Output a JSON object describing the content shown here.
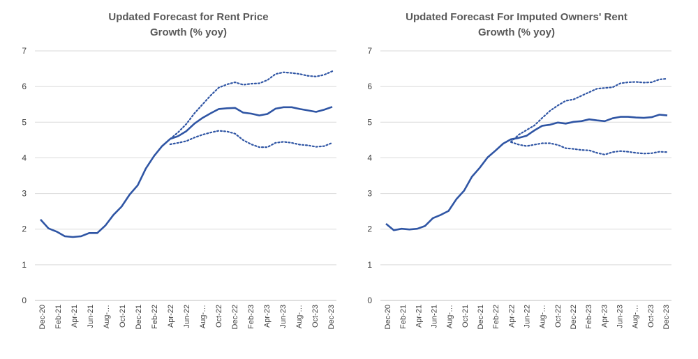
{
  "chart_data": [
    {
      "type": "line",
      "title_line1": "Updated Forecast for Rent Price",
      "title_line2": "Growth (% yoy)",
      "ylim": [
        0,
        7
      ],
      "yticks": [
        "0",
        "1",
        "2",
        "3",
        "4",
        "5",
        "6",
        "7"
      ],
      "tick_labels": [
        "Dec-20",
        "Feb-21",
        "Apr-21",
        "Jun-21",
        "Aug-…",
        "Oct-21",
        "Dec-21",
        "Feb-22",
        "Apr-22",
        "Jun-22",
        "Aug-…",
        "Oct-22",
        "Dec-22",
        "Feb-23",
        "Apr-23",
        "Jun-23",
        "Aug-…",
        "Oct-23",
        "Dec-23"
      ],
      "grid": true,
      "colors": {
        "line": "#2f55a4",
        "grid": "#d9d9d9",
        "axis": "#bfbfbf"
      },
      "series": [
        {
          "name": "forecast",
          "style": "solid",
          "start": 0,
          "values": [
            2.27,
            2.02,
            1.93,
            1.8,
            1.78,
            1.8,
            1.89,
            1.89,
            2.1,
            2.4,
            2.63,
            2.97,
            3.23,
            3.7,
            4.05,
            4.33,
            4.53,
            4.61,
            4.75,
            4.96,
            5.12,
            5.25,
            5.37,
            5.39,
            5.4,
            5.27,
            5.24,
            5.19,
            5.23,
            5.38,
            5.42,
            5.42,
            5.37,
            5.33,
            5.29,
            5.35,
            5.43
          ]
        },
        {
          "name": "upper bound",
          "style": "dotted",
          "start": 16,
          "values": [
            4.53,
            4.72,
            4.95,
            5.25,
            5.5,
            5.75,
            5.97,
            6.06,
            6.12,
            6.05,
            6.08,
            6.09,
            6.18,
            6.35,
            6.4,
            6.38,
            6.35,
            6.3,
            6.28,
            6.33,
            6.43
          ]
        },
        {
          "name": "lower bound",
          "style": "dotted",
          "start": 16,
          "values": [
            4.38,
            4.42,
            4.47,
            4.57,
            4.65,
            4.71,
            4.76,
            4.74,
            4.68,
            4.5,
            4.38,
            4.3,
            4.3,
            4.42,
            4.45,
            4.42,
            4.37,
            4.35,
            4.31,
            4.33,
            4.42
          ]
        }
      ]
    },
    {
      "type": "line",
      "title_line1": "Updated Forecast For Imputed Owners' Rent",
      "title_line2": "Growth (% yoy)",
      "ylim": [
        0,
        7
      ],
      "yticks": [
        "0",
        "1",
        "2",
        "3",
        "4",
        "5",
        "6",
        "7"
      ],
      "tick_labels": [
        "Dec-20",
        "Feb-21",
        "Apr-21",
        "Jun-21",
        "Aug-…",
        "Oct-21",
        "Dec-21",
        "Feb-22",
        "Apr-22",
        "Jun-22",
        "Aug-…",
        "Oct-22",
        "Dec-22",
        "Feb-23",
        "Apr-23",
        "Jun-23",
        "Aug-…",
        "Oct-23",
        "Dec-23"
      ],
      "grid": true,
      "colors": {
        "line": "#2f55a4",
        "grid": "#d9d9d9",
        "axis": "#bfbfbf"
      },
      "series": [
        {
          "name": "forecast",
          "style": "solid",
          "start": 0,
          "values": [
            2.15,
            1.97,
            2.01,
            1.99,
            2.01,
            2.09,
            2.31,
            2.4,
            2.51,
            2.84,
            3.08,
            3.47,
            3.72,
            4.01,
            4.2,
            4.4,
            4.52,
            4.56,
            4.62,
            4.77,
            4.9,
            4.93,
            4.99,
            4.96,
            5.01,
            5.03,
            5.08,
            5.05,
            5.03,
            5.11,
            5.15,
            5.15,
            5.13,
            5.12,
            5.14,
            5.21,
            5.19
          ]
        },
        {
          "name": "upper bound",
          "style": "dotted",
          "start": 16,
          "values": [
            4.45,
            4.65,
            4.78,
            4.91,
            5.12,
            5.32,
            5.47,
            5.6,
            5.64,
            5.74,
            5.84,
            5.94,
            5.96,
            5.98,
            6.09,
            6.12,
            6.13,
            6.11,
            6.12,
            6.2,
            6.22
          ]
        },
        {
          "name": "lower bound",
          "style": "dotted",
          "start": 16,
          "values": [
            4.44,
            4.37,
            4.33,
            4.37,
            4.41,
            4.41,
            4.36,
            4.27,
            4.25,
            4.22,
            4.21,
            4.14,
            4.09,
            4.16,
            4.19,
            4.17,
            4.14,
            4.12,
            4.13,
            4.17,
            4.16
          ]
        }
      ]
    }
  ]
}
